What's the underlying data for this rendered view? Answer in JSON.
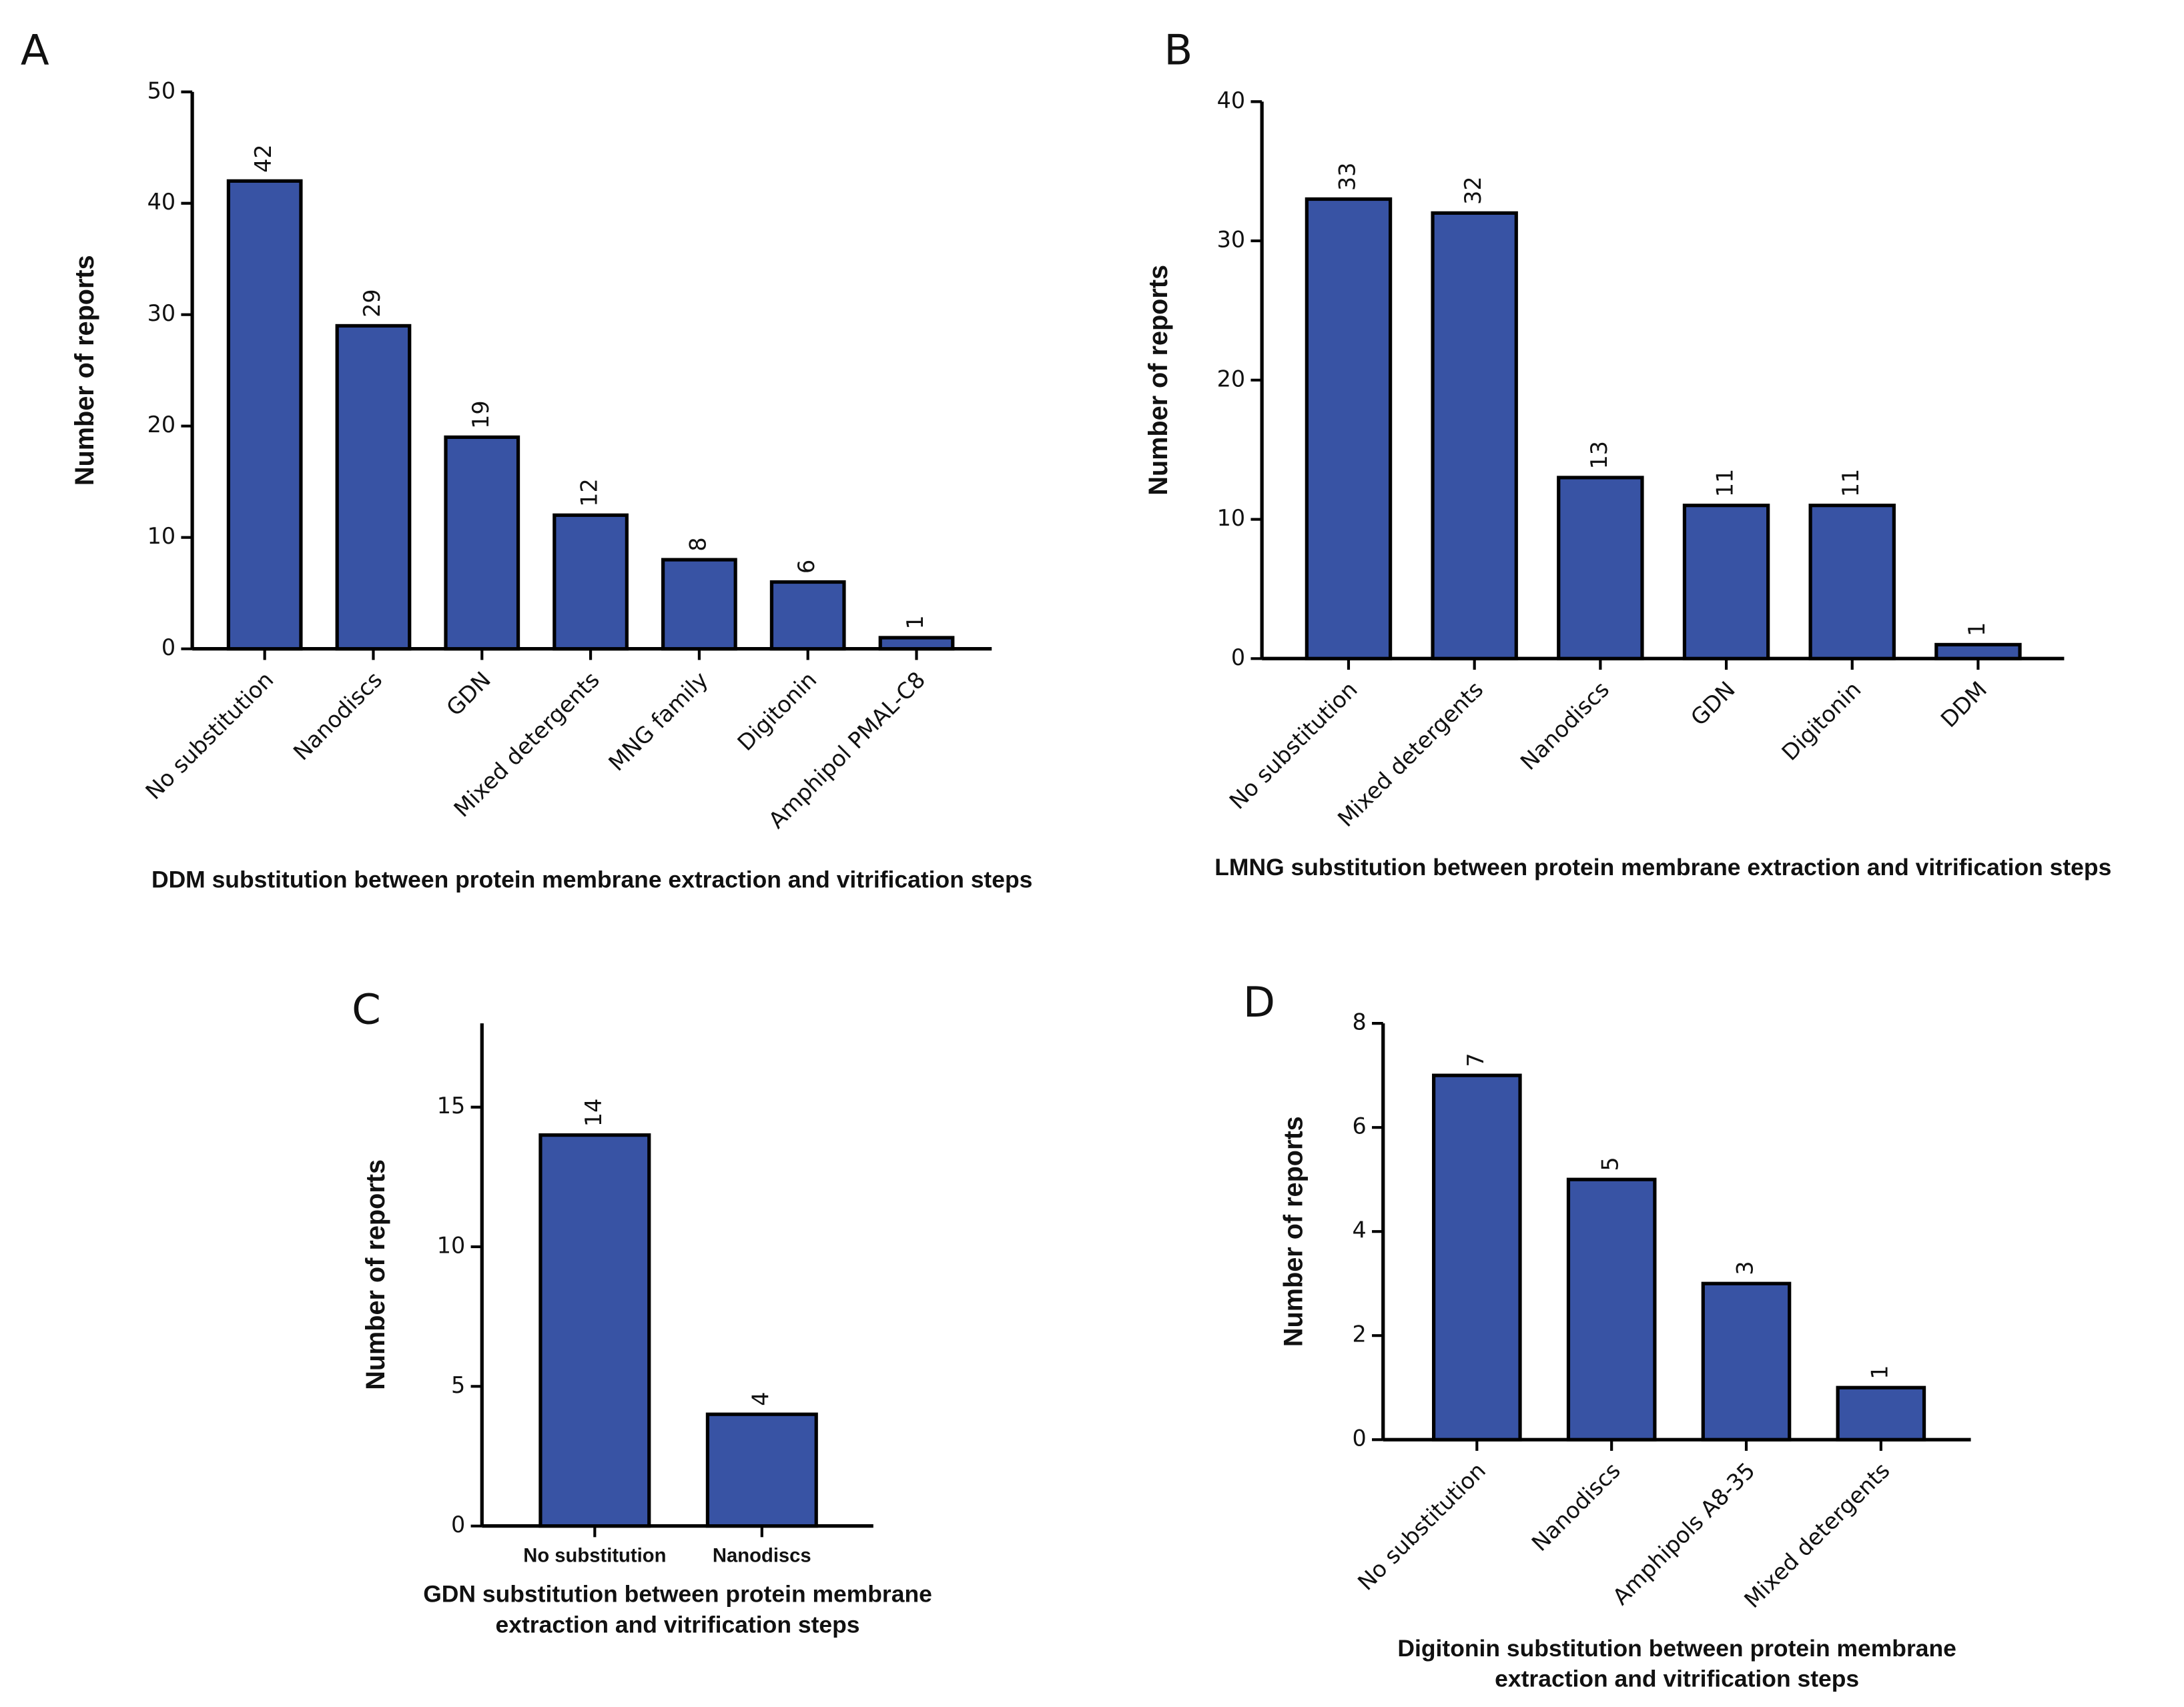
{
  "chart_data": [
    {
      "type": "bar",
      "panel": "A",
      "title": "",
      "ylabel": "Number of reports",
      "xlabel": "DDM substitution between protein membrane extraction and vitrification steps",
      "categories": [
        "No substitution",
        "Nanodiscs",
        "GDN",
        "Mixed detergents",
        "MNG family",
        "Digitonin",
        "Amphipol PMAL-C8"
      ],
      "values": [
        42,
        29,
        19,
        12,
        8,
        6,
        1
      ],
      "color": "#3853a4",
      "ylim": [
        0,
        50
      ],
      "yticks": [
        0,
        10,
        20,
        30,
        40,
        50
      ]
    },
    {
      "type": "bar",
      "panel": "B",
      "title": "",
      "ylabel": "Number of reports",
      "xlabel": "LMNG substitution between protein membrane extraction and vitrification steps",
      "categories": [
        "No substitution",
        "Mixed detergents",
        "Nanodiscs",
        "GDN",
        "Digitonin",
        "DDM"
      ],
      "values": [
        33,
        32,
        13,
        11,
        11,
        1
      ],
      "color": "#3853a4",
      "ylim": [
        0,
        40
      ],
      "yticks": [
        0,
        10,
        20,
        30,
        40
      ]
    },
    {
      "type": "bar",
      "panel": "C",
      "title": "",
      "ylabel": "Number of reports",
      "xlabel": [
        "GDN substitution between protein membrane",
        "extraction and vitrification steps"
      ],
      "categories": [
        "No substitution",
        "Nanodiscs"
      ],
      "values": [
        14,
        4
      ],
      "color": "#3853a4",
      "ylim": [
        0,
        18
      ],
      "yticks": [
        0,
        5,
        10,
        15
      ]
    },
    {
      "type": "bar",
      "panel": "D",
      "title": "",
      "ylabel": "Number of reports",
      "xlabel": [
        "Digitonin substitution between protein membrane",
        "extraction and vitrification steps"
      ],
      "categories": [
        "No substitution",
        "Nanodiscs",
        "Amphipols A8-35",
        "Mixed detergents"
      ],
      "values": [
        7,
        5,
        3,
        1
      ],
      "color": "#3853a4",
      "ylim": [
        0,
        8
      ],
      "yticks": [
        0,
        2,
        4,
        6,
        8
      ]
    }
  ]
}
